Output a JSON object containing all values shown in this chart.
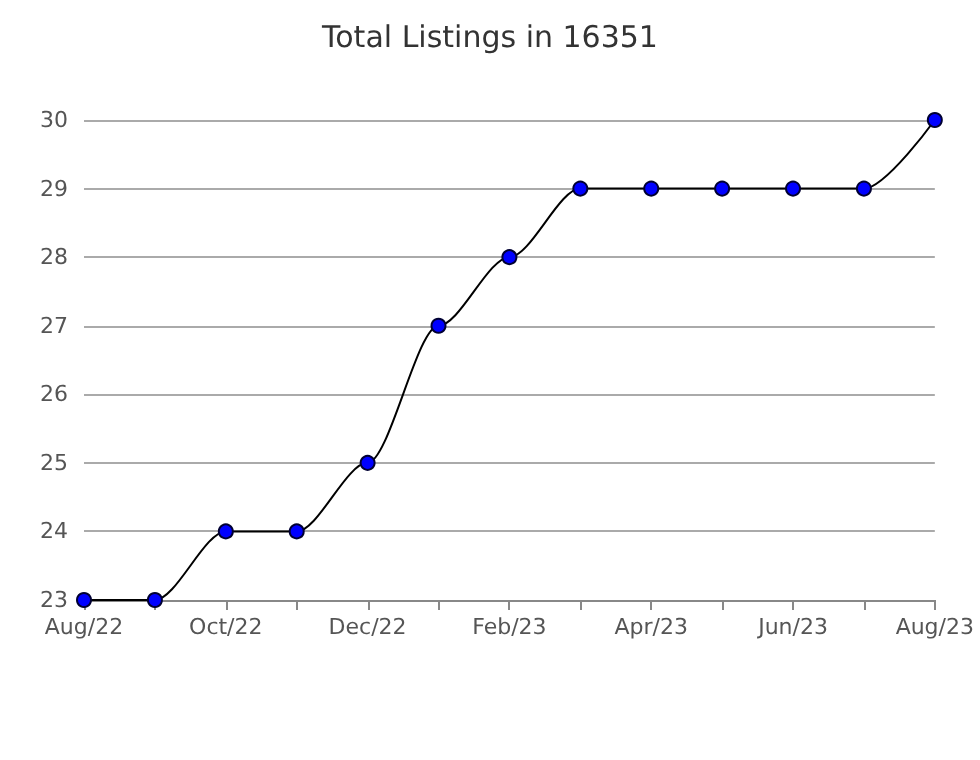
{
  "chart_data": {
    "type": "line",
    "title": "Total Listings in 16351",
    "categories": [
      "Aug/22",
      null,
      "Oct/22",
      null,
      "Dec/22",
      null,
      "Feb/23",
      null,
      "Apr/23",
      null,
      "Jun/23",
      null,
      "Aug/23"
    ],
    "series": [
      {
        "color": "#0000ff",
        "values": [
          23,
          23,
          24,
          24,
          25,
          27,
          28,
          29,
          29,
          29,
          29,
          29,
          30
        ]
      }
    ],
    "ylim": [
      23,
      30
    ],
    "yticks": [
      23,
      24,
      25,
      26,
      27,
      28,
      29,
      30
    ],
    "grid": "y",
    "marker": "circle",
    "line_style": "solid"
  }
}
